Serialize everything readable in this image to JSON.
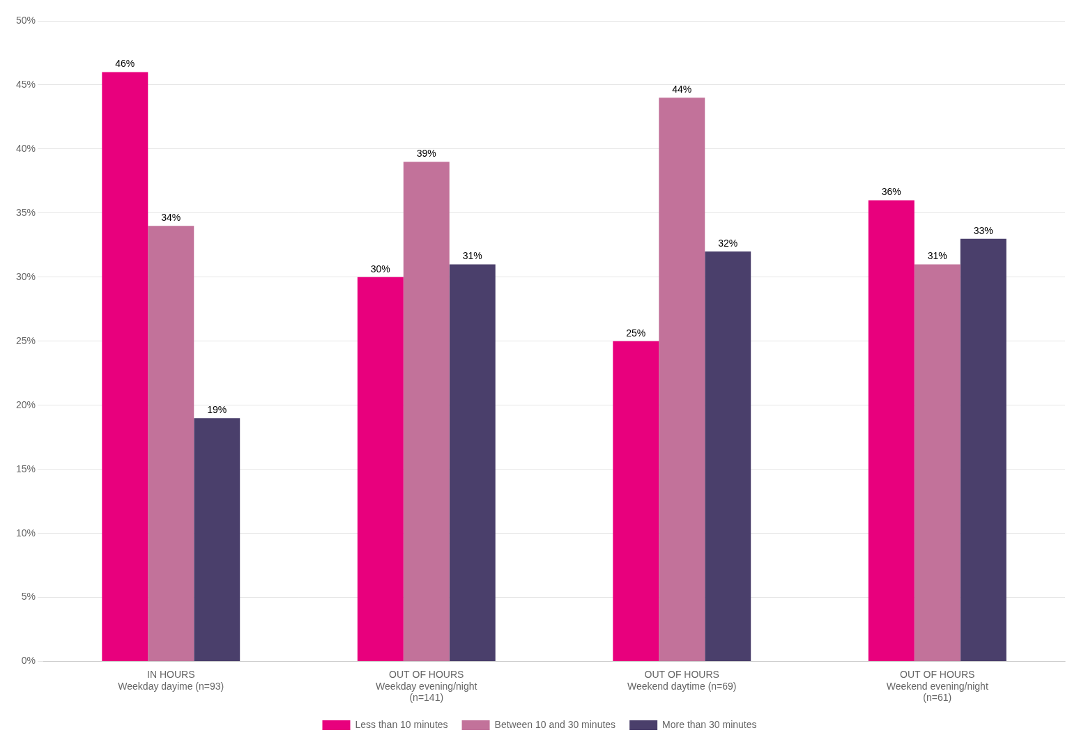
{
  "chart_data": {
    "type": "bar",
    "categories": [
      "IN HOURS\nWeekday dayime (n=93)",
      "OUT OF HOURS\nWeekday evening/night\n(n=141)",
      "OUT OF HOURS\nWeekend daytime (n=69)",
      "OUT OF HOURS\nWeekend evening/night\n(n=61)"
    ],
    "series": [
      {
        "name": "Less than 10 minutes",
        "color": "#E8007D",
        "values": [
          46,
          30,
          25,
          36
        ],
        "value_labels": [
          "46%",
          "30%",
          "25%",
          "36%"
        ]
      },
      {
        "name": "Between 10 and 30 minutes",
        "color": "#C2729A",
        "values": [
          34,
          39,
          44,
          31
        ],
        "value_labels": [
          "34%",
          "39%",
          "44%",
          "31%"
        ]
      },
      {
        "name": "More than 30 minutes",
        "color": "#4A3F6B",
        "values": [
          19,
          31,
          32,
          33
        ],
        "value_labels": [
          "19%",
          "31%",
          "32%",
          "33%"
        ]
      }
    ],
    "ylim": [
      0,
      50
    ],
    "yticks": [
      {
        "value": 0,
        "label": "0%"
      },
      {
        "value": 5,
        "label": "5%"
      },
      {
        "value": 10,
        "label": "10%"
      },
      {
        "value": 15,
        "label": "15%"
      },
      {
        "value": 20,
        "label": "20%"
      },
      {
        "value": 25,
        "label": "25%"
      },
      {
        "value": 30,
        "label": "30%"
      },
      {
        "value": 35,
        "label": "35%"
      },
      {
        "value": 40,
        "label": "40%"
      },
      {
        "value": 45,
        "label": "45%"
      },
      {
        "value": 50,
        "label": "50%"
      }
    ],
    "grid": true,
    "legend": "bottom",
    "data_labels": true
  }
}
